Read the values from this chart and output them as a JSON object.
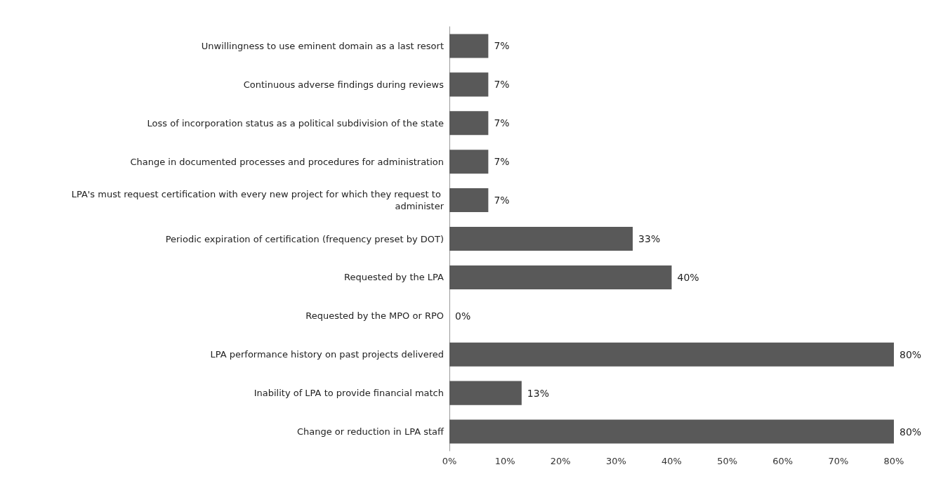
{
  "chart_data": {
    "type": "bar",
    "orientation": "horizontal",
    "categories": [
      "Unwillingness to use eminent domain as a last resort",
      "Continuous adverse findings during reviews",
      "Loss of incorporation status as a political subdivision of the state",
      "Change in documented processes and procedures for administration",
      "LPA's must request certification with every new project for which they request to administer",
      "Periodic expiration of certification (frequency preset by DOT)",
      "Requested by the LPA",
      "Requested by the MPO or RPO",
      "LPA performance history on past projects delivered",
      "Inability of LPA to provide financial match",
      "Change or reduction in LPA staff"
    ],
    "values": [
      7,
      7,
      7,
      7,
      7,
      33,
      40,
      0,
      80,
      13,
      80
    ],
    "value_labels": [
      "7%",
      "7%",
      "7%",
      "7%",
      "7%",
      "33%",
      "40%",
      "0%",
      "80%",
      "13%",
      "80%"
    ],
    "color": "#595959",
    "xlim": [
      0,
      80
    ],
    "xticks": [
      {
        "value": 0,
        "label": "0%"
      },
      {
        "value": 10,
        "label": "10%"
      },
      {
        "value": 20,
        "label": "20%"
      },
      {
        "value": 30,
        "label": "30%"
      },
      {
        "value": 40,
        "label": "40%"
      },
      {
        "value": 50,
        "label": "50%"
      },
      {
        "value": 60,
        "label": "60%"
      },
      {
        "value": 70,
        "label": "70%"
      },
      {
        "value": 80,
        "label": "80%"
      }
    ],
    "grid": false
  }
}
